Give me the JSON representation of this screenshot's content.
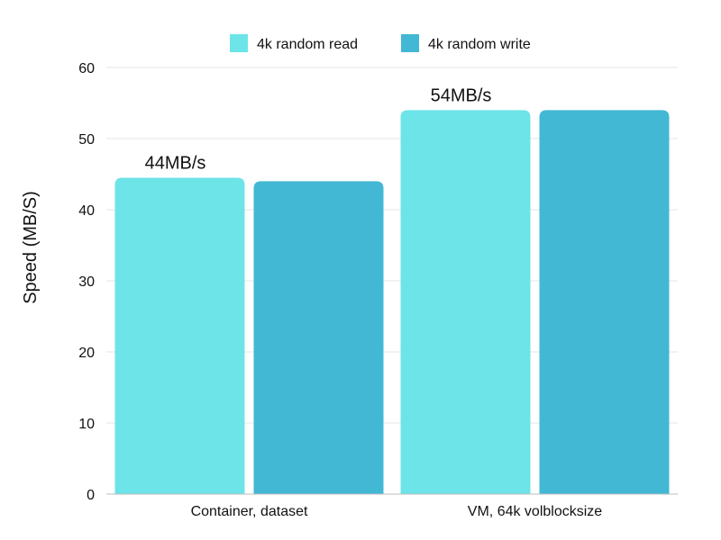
{
  "chart_data": {
    "type": "bar",
    "title": "",
    "xlabel": "",
    "ylabel": "Speed (MB/S)",
    "ylim": [
      0,
      60
    ],
    "yticks": [
      0,
      10,
      20,
      30,
      40,
      50,
      60
    ],
    "grid": true,
    "legend_position": "top",
    "categories": [
      "Container, dataset",
      "VM, 64k volblocksize"
    ],
    "series": [
      {
        "name": "4k random read",
        "color": "#6de4e8",
        "values": [
          44.5,
          54
        ]
      },
      {
        "name": "4k random write",
        "color": "#42b8d4",
        "values": [
          44,
          54
        ]
      }
    ],
    "annotations": [
      {
        "category": "Container, dataset",
        "text": "44MB/s"
      },
      {
        "category": "VM, 64k volblocksize",
        "text": "54MB/s"
      }
    ],
    "colors": {
      "grid": "#e6e6e6",
      "axis": "#bdbdbd",
      "text": "#111111"
    }
  }
}
